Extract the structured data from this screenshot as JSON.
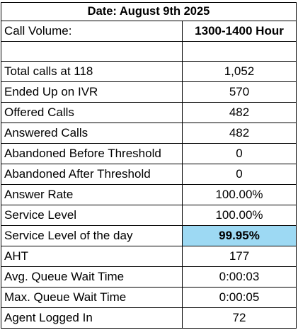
{
  "title": "Date: August 9th 2025",
  "header": {
    "label": "Call Volume:",
    "hour": "1300-1400 Hour"
  },
  "rows": [
    {
      "label": "Total calls at 118",
      "value": "1,052"
    },
    {
      "label": "Ended Up on IVR",
      "value": "570"
    },
    {
      "label": "Offered Calls",
      "value": "482"
    },
    {
      "label": "Answered Calls",
      "value": "482"
    },
    {
      "label": "Abandoned Before Threshold",
      "value": "0"
    },
    {
      "label": "Abandoned After Threshold",
      "value": "0"
    },
    {
      "label": "Answer Rate",
      "value": "100.00%"
    },
    {
      "label": "Service Level",
      "value": "100.00%"
    },
    {
      "label": "Service Level of the day",
      "value": "99.95%"
    },
    {
      "label": "AHT",
      "value": "177"
    },
    {
      "label": "Avg. Queue Wait Time",
      "value": "0:00:03"
    },
    {
      "label": "Max. Queue Wait Time",
      "value": "0:00:05"
    },
    {
      "label": "Agent Logged In",
      "value": "72"
    }
  ],
  "colors": {
    "highlight": "#9dd9f3",
    "border": "#000000"
  }
}
